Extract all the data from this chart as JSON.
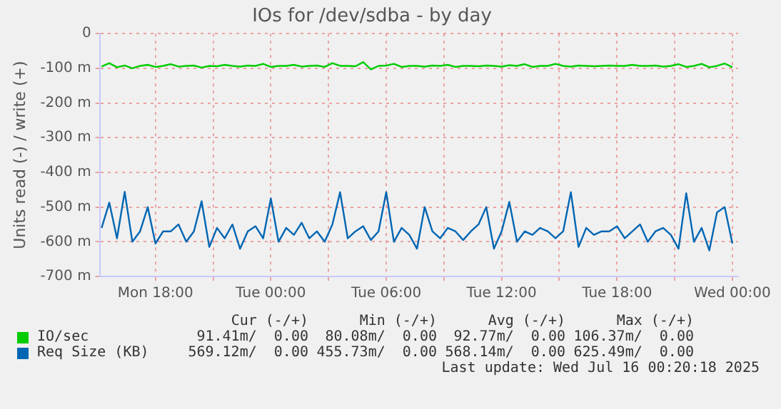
{
  "chart_data": {
    "type": "line",
    "title": "IOs for /dev/sdba - by day",
    "ylabel": "Units read (-) / write (+)",
    "x": [
      "2025-07-14T15:12",
      "2025-07-14T15:36",
      "2025-07-14T16:00",
      "2025-07-14T16:24",
      "2025-07-14T16:48",
      "2025-07-14T17:12",
      "2025-07-14T17:36",
      "2025-07-14T18:00",
      "2025-07-14T18:24",
      "2025-07-14T18:48",
      "2025-07-14T19:12",
      "2025-07-14T19:36",
      "2025-07-14T20:00",
      "2025-07-14T20:24",
      "2025-07-14T20:48",
      "2025-07-14T21:12",
      "2025-07-14T21:36",
      "2025-07-14T22:00",
      "2025-07-14T22:24",
      "2025-07-14T22:48",
      "2025-07-14T23:12",
      "2025-07-14T23:36",
      "2025-07-15T00:00",
      "2025-07-15T00:24",
      "2025-07-15T00:48",
      "2025-07-15T01:12",
      "2025-07-15T01:36",
      "2025-07-15T02:00",
      "2025-07-15T02:24",
      "2025-07-15T02:48",
      "2025-07-15T03:12",
      "2025-07-15T03:36",
      "2025-07-15T04:00",
      "2025-07-15T04:24",
      "2025-07-15T04:48",
      "2025-07-15T05:12",
      "2025-07-15T05:36",
      "2025-07-15T06:00",
      "2025-07-15T06:24",
      "2025-07-15T06:48",
      "2025-07-15T07:12",
      "2025-07-15T07:36",
      "2025-07-15T08:00",
      "2025-07-15T08:24",
      "2025-07-15T08:48",
      "2025-07-15T09:12",
      "2025-07-15T09:36",
      "2025-07-15T10:00",
      "2025-07-15T10:24",
      "2025-07-15T10:48",
      "2025-07-15T11:12",
      "2025-07-15T11:36",
      "2025-07-15T12:00",
      "2025-07-15T12:24",
      "2025-07-15T12:48",
      "2025-07-15T13:12",
      "2025-07-15T13:36",
      "2025-07-15T14:00",
      "2025-07-15T14:24",
      "2025-07-15T14:48",
      "2025-07-15T15:12",
      "2025-07-15T15:36",
      "2025-07-15T16:00",
      "2025-07-15T16:24",
      "2025-07-15T16:48",
      "2025-07-15T17:12",
      "2025-07-15T17:36",
      "2025-07-15T18:00",
      "2025-07-15T18:24",
      "2025-07-15T18:48",
      "2025-07-15T19:12",
      "2025-07-15T19:36",
      "2025-07-15T20:00",
      "2025-07-15T20:24",
      "2025-07-15T20:48",
      "2025-07-15T21:12",
      "2025-07-15T21:36",
      "2025-07-15T22:00",
      "2025-07-15T22:24",
      "2025-07-15T22:48",
      "2025-07-15T23:12",
      "2025-07-15T23:36",
      "2025-07-16T00:00"
    ],
    "series": [
      {
        "name": "IO/sec",
        "color": "#00cc00",
        "values": [
          -95,
          -85,
          -97,
          -92,
          -100,
          -93,
          -90,
          -96,
          -93,
          -88,
          -95,
          -93,
          -92,
          -98,
          -93,
          -94,
          -90,
          -93,
          -95,
          -92,
          -93,
          -87,
          -96,
          -93,
          -93,
          -90,
          -95,
          -93,
          -92,
          -96,
          -85,
          -93,
          -93,
          -94,
          -82,
          -103,
          -93,
          -92,
          -87,
          -96,
          -93,
          -93,
          -95,
          -92,
          -93,
          -90,
          -96,
          -93,
          -93,
          -94,
          -92,
          -93,
          -95,
          -91,
          -93,
          -88,
          -96,
          -93,
          -93,
          -87,
          -93,
          -95,
          -92,
          -93,
          -94,
          -93,
          -92,
          -93,
          -93,
          -90,
          -93,
          -93,
          -92,
          -95,
          -93,
          -88,
          -96,
          -93,
          -87,
          -97,
          -93,
          -86,
          -97
        ]
      },
      {
        "name": "Req Size (KB)",
        "color": "#0066b3",
        "values": [
          -560,
          -487,
          -590,
          -456,
          -600,
          -570,
          -500,
          -605,
          -570,
          -570,
          -550,
          -600,
          -570,
          -483,
          -615,
          -560,
          -590,
          -550,
          -620,
          -570,
          -555,
          -590,
          -475,
          -600,
          -560,
          -580,
          -545,
          -590,
          -570,
          -600,
          -550,
          -457,
          -590,
          -570,
          -555,
          -595,
          -570,
          -457,
          -600,
          -560,
          -580,
          -620,
          -500,
          -570,
          -590,
          -560,
          -570,
          -595,
          -570,
          -550,
          -500,
          -620,
          -570,
          -485,
          -600,
          -570,
          -580,
          -560,
          -570,
          -590,
          -570,
          -457,
          -615,
          -560,
          -580,
          -570,
          -570,
          -555,
          -590,
          -570,
          -550,
          -600,
          -570,
          -560,
          -580,
          -620,
          -460,
          -600,
          -560,
          -625,
          -515,
          -500,
          -605
        ]
      }
    ],
    "xlim": [
      "2025-07-14T15:06",
      "2025-07-16T00:18"
    ],
    "xticks": [
      {
        "value": "2025-07-14T18:00",
        "label": "Mon 18:00"
      },
      {
        "value": "2025-07-14T21:00",
        "label": null
      },
      {
        "value": "2025-07-15T00:00",
        "label": "Tue 00:00"
      },
      {
        "value": "2025-07-15T03:00",
        "label": null
      },
      {
        "value": "2025-07-15T06:00",
        "label": "Tue 06:00"
      },
      {
        "value": "2025-07-15T09:00",
        "label": null
      },
      {
        "value": "2025-07-15T12:00",
        "label": "Tue 12:00"
      },
      {
        "value": "2025-07-15T15:00",
        "label": null
      },
      {
        "value": "2025-07-15T18:00",
        "label": "Tue 18:00"
      },
      {
        "value": "2025-07-15T21:00",
        "label": null
      },
      {
        "value": "2025-07-16T00:00",
        "label": "Wed 00:00"
      }
    ],
    "ylim": [
      -700,
      0
    ],
    "yticks": [
      {
        "value": -700,
        "label": "-700 m"
      },
      {
        "value": -600,
        "label": "-600 m"
      },
      {
        "value": -500,
        "label": "-500 m"
      },
      {
        "value": -400,
        "label": "-400 m"
      },
      {
        "value": -300,
        "label": "-300 m"
      },
      {
        "value": -200,
        "label": "-200 m"
      },
      {
        "value": -100,
        "label": "-100 m"
      },
      {
        "value": 0,
        "label": "0"
      }
    ],
    "grid": true,
    "legend": "bottom",
    "marker": "none",
    "line_style": "solid",
    "annotations": [
      "Cur (-/+)",
      "Min (-/+)",
      "Avg (-/+)",
      "Max (-/+)",
      "91.41m/  0.00",
      "80.08m/  0.00",
      "92.77m/  0.00",
      "106.37m/  0.00",
      "569.12m/  0.00",
      "455.73m/  0.00",
      "568.14m/  0.00",
      "625.49m/  0.00",
      "Last update: Wed Jul 16 00:20:18 2025"
    ]
  }
}
